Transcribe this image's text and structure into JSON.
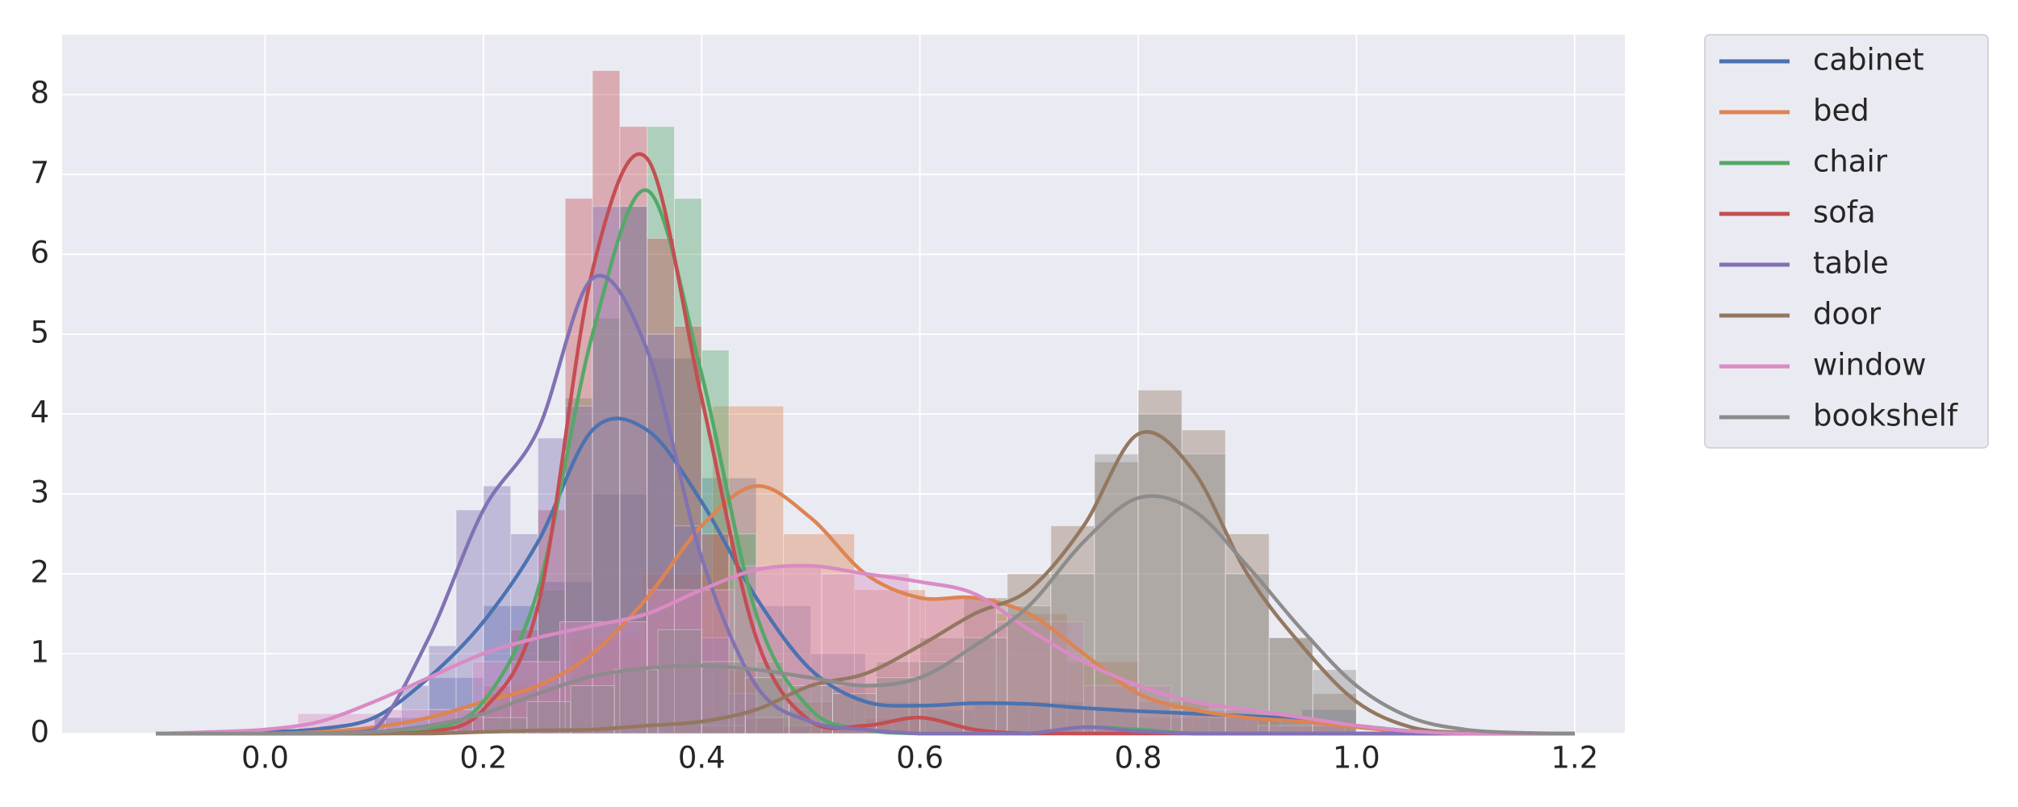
{
  "chart_data": {
    "type": "histogram",
    "xlim": [
      -0.186,
      1.246
    ],
    "ylim": [
      0,
      8.75
    ],
    "xticks": [
      {
        "value": 0,
        "label": "0.0"
      },
      0.2,
      0.4,
      0.6,
      0.8,
      {
        "value": 1,
        "label": "1.0"
      },
      1.2
    ],
    "yticks": [
      0,
      1,
      2,
      3,
      4,
      5,
      6,
      7,
      8
    ],
    "grid": true,
    "legend": "outside-upper-right",
    "x": [
      -0.1,
      -0.05,
      0,
      0.05,
      0.1,
      0.15,
      0.2,
      0.25,
      0.3,
      0.35,
      0.4,
      0.45,
      0.5,
      0.55,
      0.6,
      0.65,
      0.7,
      0.75,
      0.8,
      0.85,
      0.9,
      0.95,
      1.0,
      1.05,
      1.1,
      1.15,
      1.2
    ],
    "series": [
      {
        "name": "cabinet",
        "color": "#4c72b0",
        "kde": [
          0,
          0,
          0.02,
          0.06,
          0.2,
          0.7,
          1.4,
          2.4,
          3.8,
          3.8,
          2.9,
          1.7,
          0.8,
          0.4,
          0.35,
          0.38,
          0.37,
          0.32,
          0.28,
          0.25,
          0.22,
          0.18,
          0.1,
          0.03,
          0,
          0,
          0
        ],
        "bins": [
          0.1,
          0.15,
          0.2,
          0.25,
          0.3,
          0.35,
          0.4,
          0.45,
          0.5,
          0.55,
          0.6,
          0.65,
          0.7,
          0.75,
          0.8,
          0.85,
          0.9,
          0.95,
          1.0
        ],
        "counts": [
          0.2,
          0.7,
          1.6,
          1.9,
          3.0,
          4.7,
          3.2,
          1.6,
          1.0,
          0.4,
          0.3,
          0.4,
          0.4,
          0.3,
          0.2,
          0.2,
          0.2,
          0.3
        ]
      },
      {
        "name": "bed",
        "color": "#dd8452",
        "kde": [
          0,
          0,
          0,
          0.02,
          0.08,
          0.2,
          0.4,
          0.6,
          1.0,
          1.7,
          2.6,
          3.1,
          2.7,
          2.0,
          1.7,
          1.7,
          1.5,
          1.0,
          0.5,
          0.3,
          0.2,
          0.15,
          0.08,
          0.02,
          0,
          0,
          0
        ],
        "bins": [
          0.15,
          0.215,
          0.28,
          0.345,
          0.41,
          0.475,
          0.54,
          0.605,
          0.67,
          0.735,
          0.8,
          0.865,
          0.93,
          0.995
        ],
        "counts": [
          0.3,
          0.6,
          1.2,
          2.0,
          4.1,
          2.5,
          1.8,
          1.7,
          1.5,
          0.9,
          0.4,
          0.2,
          0.1
        ]
      },
      {
        "name": "chair",
        "color": "#55a868",
        "kde": [
          0,
          0,
          0,
          0,
          0,
          0.05,
          0.4,
          1.8,
          5.0,
          6.8,
          4.5,
          1.5,
          0.3,
          0.05,
          0,
          0,
          0,
          0.08,
          0.05,
          0,
          0,
          0,
          0,
          0,
          0,
          0,
          0
        ],
        "bins": [
          0.15,
          0.175,
          0.2,
          0.225,
          0.25,
          0.275,
          0.3,
          0.325,
          0.35,
          0.375,
          0.4,
          0.425,
          0.45,
          0.475,
          0.5,
          0.525,
          0.55
        ],
        "counts": [
          0.1,
          0.2,
          0.5,
          0.9,
          1.8,
          4.2,
          5.2,
          6.6,
          7.6,
          6.7,
          4.8,
          2.5,
          0.9,
          0.3,
          0.1,
          0.05
        ]
      },
      {
        "name": "sofa",
        "color": "#c44e52",
        "kde": [
          0,
          0,
          0,
          0,
          0,
          0.02,
          0.3,
          1.6,
          5.8,
          7.2,
          4.2,
          1.2,
          0.15,
          0.1,
          0.2,
          0.05,
          0,
          0,
          0,
          0,
          0,
          0,
          0,
          0,
          0,
          0,
          0
        ],
        "bins": [
          0.175,
          0.2,
          0.225,
          0.25,
          0.275,
          0.3,
          0.325,
          0.35,
          0.375,
          0.4,
          0.425,
          0.45,
          0.475,
          0.5,
          0.525,
          0.55,
          0.575,
          0.6
        ],
        "counts": [
          0.2,
          0.6,
          1.3,
          2.8,
          6.7,
          8.3,
          7.6,
          6.2,
          5.1,
          2.5,
          0.8,
          0.2,
          0.1,
          0.1,
          0.1,
          0.2,
          0.2
        ]
      },
      {
        "name": "table",
        "color": "#8172b3",
        "kde": [
          0,
          0,
          0,
          0,
          0.05,
          1.2,
          2.8,
          3.8,
          5.7,
          4.8,
          2.2,
          0.6,
          0.15,
          0.05,
          0,
          0,
          0,
          0.08,
          0.03,
          0,
          0,
          0,
          0,
          0,
          0,
          0,
          0
        ],
        "bins": [
          0.1,
          0.125,
          0.15,
          0.175,
          0.2,
          0.225,
          0.25,
          0.275,
          0.3,
          0.325,
          0.35,
          0.375,
          0.4,
          0.425,
          0.45,
          0.475,
          0.5
        ],
        "counts": [
          0.2,
          0.6,
          1.1,
          2.8,
          3.1,
          2.5,
          3.7,
          4.1,
          6.6,
          6.6,
          5.0,
          2.6,
          1.2,
          0.5,
          0.2,
          0.1
        ]
      },
      {
        "name": "door",
        "color": "#937860",
        "kde": [
          0,
          0,
          0,
          0,
          0,
          0,
          0.02,
          0.04,
          0.05,
          0.1,
          0.15,
          0.3,
          0.6,
          0.75,
          1.1,
          1.5,
          1.8,
          2.6,
          3.75,
          3.3,
          2.0,
          1.1,
          0.4,
          0.08,
          0.01,
          0,
          0
        ],
        "bins": [
          0.4,
          0.44,
          0.48,
          0.52,
          0.56,
          0.6,
          0.64,
          0.68,
          0.72,
          0.76,
          0.8,
          0.84,
          0.88,
          0.92,
          0.96,
          1.0
        ],
        "counts": [
          0.1,
          0.2,
          0.4,
          0.6,
          0.9,
          1.2,
          1.7,
          2.0,
          2.6,
          3.4,
          4.3,
          3.8,
          2.5,
          1.2,
          0.5
        ]
      },
      {
        "name": "window",
        "color": "#da8bc3",
        "kde": [
          0,
          0.02,
          0.05,
          0.15,
          0.4,
          0.7,
          1.0,
          1.2,
          1.35,
          1.5,
          1.8,
          2.05,
          2.1,
          2.0,
          1.9,
          1.75,
          1.3,
          0.9,
          0.6,
          0.4,
          0.3,
          0.2,
          0.1,
          0.03,
          0,
          0,
          0
        ],
        "bins": [
          0.03,
          0.11,
          0.19,
          0.27,
          0.35,
          0.43,
          0.51,
          0.59,
          0.67,
          0.75,
          0.83,
          0.91,
          0.99
        ],
        "counts": [
          0.25,
          0.3,
          0.9,
          1.4,
          1.8,
          2.1,
          2.0,
          1.7,
          1.4,
          0.6,
          0.3,
          0.1
        ]
      },
      {
        "name": "bookshelf",
        "color": "#8c8c8c",
        "kde": [
          0,
          0,
          0,
          0,
          0.02,
          0.1,
          0.25,
          0.5,
          0.72,
          0.82,
          0.85,
          0.8,
          0.7,
          0.6,
          0.7,
          1.1,
          1.6,
          2.4,
          2.95,
          2.8,
          2.1,
          1.3,
          0.6,
          0.2,
          0.05,
          0.01,
          0
        ],
        "bins": [
          0.2,
          0.24,
          0.28,
          0.32,
          0.36,
          0.4,
          0.44,
          0.48,
          0.52,
          0.56,
          0.6,
          0.64,
          0.68,
          0.72,
          0.76,
          0.8,
          0.84,
          0.88,
          0.92,
          0.96,
          1.0
        ],
        "counts": [
          0.2,
          0.4,
          0.6,
          0.8,
          1.3,
          0.9,
          0.7,
          0.6,
          0.5,
          0.7,
          0.9,
          1.2,
          1.6,
          2.0,
          3.5,
          4.0,
          3.5,
          2.0,
          1.2,
          0.8
        ]
      }
    ]
  }
}
